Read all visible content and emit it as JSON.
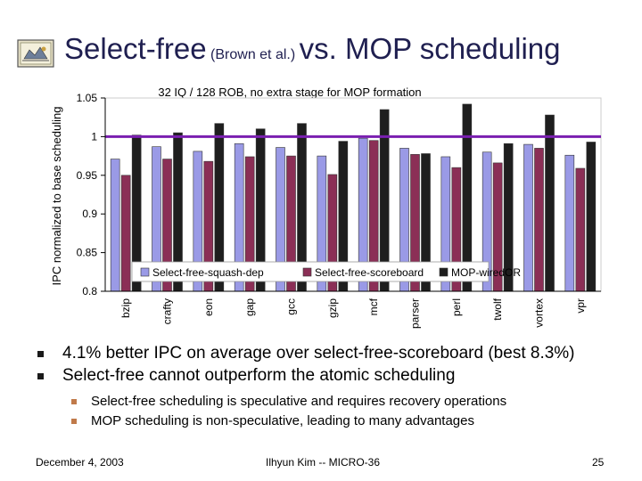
{
  "slide": {
    "title_main": "Select-free",
    "title_small": "(Brown et al.)",
    "title_rest": "vs. MOP scheduling",
    "bullets": [
      "4.1% better IPC on average over select-free-scoreboard (best 8.3%)",
      "Select-free cannot outperform the atomic scheduling"
    ],
    "sub_bullets": [
      "Select-free scheduling is speculative and requires recovery operations",
      "MOP scheduling is non-speculative, leading to many advantages"
    ],
    "footer": {
      "date": "December 4, 2003",
      "author": "Ilhyun Kim -- MICRO-36",
      "page": "25"
    }
  },
  "colors": {
    "title": "#1f1f50",
    "series": [
      "#9a9ae6",
      "#8b2f56",
      "#1e1e1e"
    ],
    "baseline": "#7a1fb0",
    "plot_bg": "#ffffff"
  },
  "chart_data": {
    "type": "bar",
    "title": "32 IQ / 128 ROB, no extra stage for MOP formation",
    "xlabel": "",
    "ylabel": "IPC normalized to base scheduling",
    "ylim": [
      0.8,
      1.05
    ],
    "yticks": [
      "0.8",
      "0.85",
      "0.9",
      "0.95",
      "1",
      "1.05"
    ],
    "grid": false,
    "legend_position": "bottom",
    "categories": [
      "bzip",
      "crafty",
      "eon",
      "gap",
      "gcc",
      "gzip",
      "mcf",
      "parser",
      "perl",
      "twolf",
      "vortex",
      "vpr"
    ],
    "series": [
      {
        "name": "Select-free-squash-dep",
        "values": [
          0.971,
          0.987,
          0.981,
          0.991,
          0.986,
          0.975,
          0.998,
          0.985,
          0.974,
          0.98,
          0.99,
          0.976
        ]
      },
      {
        "name": "Select-free-scoreboard",
        "values": [
          0.95,
          0.971,
          0.968,
          0.974,
          0.975,
          0.951,
          0.995,
          0.977,
          0.96,
          0.966,
          0.985,
          0.959
        ]
      },
      {
        "name": "MOP-wiredOR",
        "values": [
          1.002,
          1.005,
          1.017,
          1.01,
          1.017,
          0.994,
          1.035,
          0.978,
          1.042,
          0.991,
          1.028,
          0.993
        ]
      }
    ],
    "reference_line": 1.0
  }
}
